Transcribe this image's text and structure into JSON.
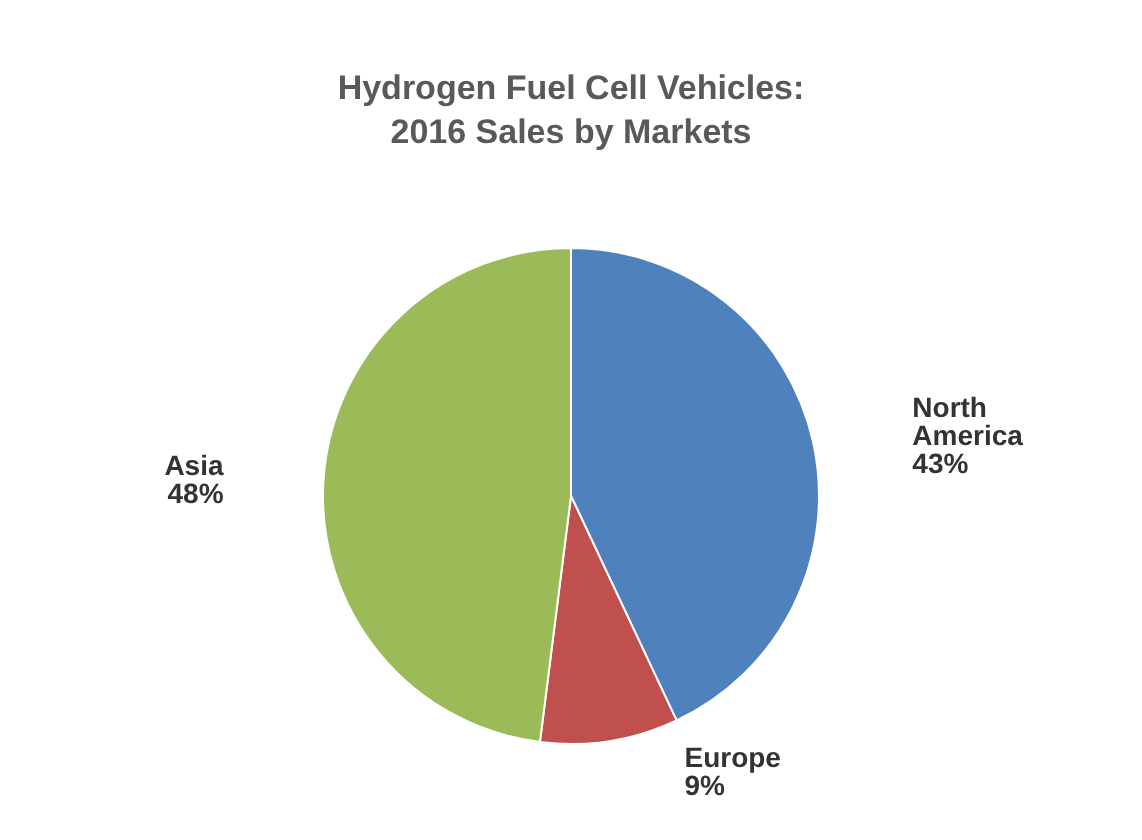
{
  "chart_data": {
    "type": "pie",
    "title": "Hydrogen Fuel Cell Vehicles:\n2016 Sales by Markets",
    "categories": [
      "North America",
      "Europe",
      "Asia"
    ],
    "values": [
      43,
      9,
      48
    ],
    "value_labels": [
      "43%",
      "9%",
      "48%"
    ],
    "colors": [
      "#4f81bd",
      "#c0504d",
      "#9bbb59"
    ],
    "legend": false
  }
}
